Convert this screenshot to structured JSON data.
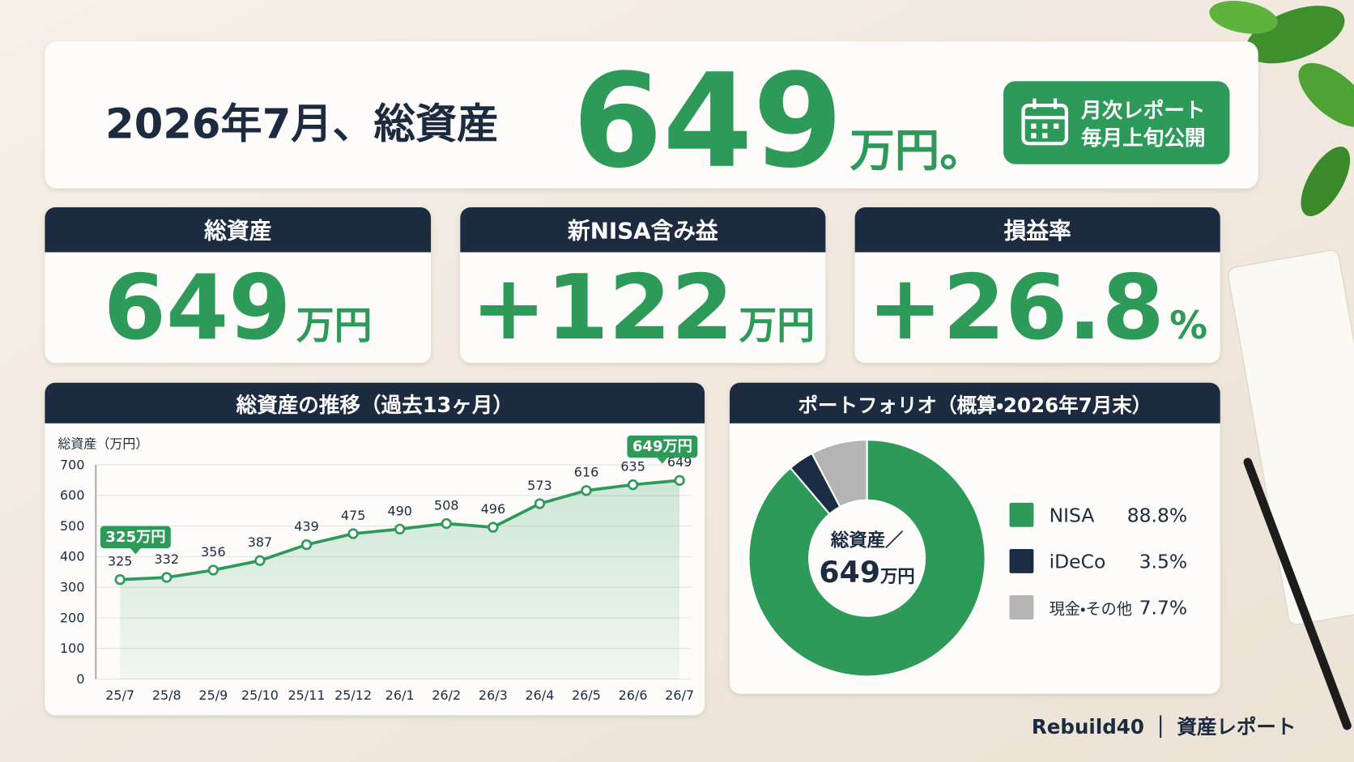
{
  "header": {
    "title": "2026年7月、総資産",
    "value": "649",
    "unit": "万円。",
    "badge": [
      "月次レポート",
      "毎月上旬公開"
    ]
  },
  "kpis": [
    {
      "title": "総資産",
      "value": "649",
      "unit": "万円"
    },
    {
      "title": "新NISA含み益",
      "value": "+122",
      "unit": "万円"
    },
    {
      "title": "損益率",
      "value": "+26.8",
      "unit": "%"
    }
  ],
  "chart_data": [
    {
      "type": "line",
      "title": "総資産の推移（過去13ヶ月）",
      "y_label": "総資産（万円）",
      "categories": [
        "25/7",
        "25/8",
        "25/9",
        "25/10",
        "25/11",
        "25/12",
        "26/1",
        "26/2",
        "26/3",
        "26/4",
        "26/5",
        "26/6",
        "26/7"
      ],
      "values": [
        325,
        332,
        356,
        387,
        439,
        475,
        490,
        508,
        496,
        573,
        616,
        635,
        649
      ],
      "color": "#2e9a5a",
      "ylim": [
        0,
        700
      ],
      "yticks": [
        0,
        100,
        200,
        300,
        400,
        500,
        600,
        700
      ],
      "grid": true,
      "annotations": [
        "325万円",
        "649万円"
      ]
    },
    {
      "type": "pie",
      "title": "ポートフォリオ（概算・2026年7月末）",
      "center_label": "総資産／",
      "center_value": "649",
      "center_unit": "万円",
      "categories": [
        "NISA",
        "iDeCo",
        "現金・その他"
      ],
      "values": [
        88.8,
        3.5,
        7.7
      ],
      "value_labels": [
        "88.8%",
        "3.5%",
        "7.7%"
      ],
      "colors": [
        "#2e9a5a",
        "#1b2d44",
        "#b4b4b4"
      ]
    }
  ],
  "footer": {
    "brand": "Rebuild40",
    "label": "資産レポート"
  }
}
